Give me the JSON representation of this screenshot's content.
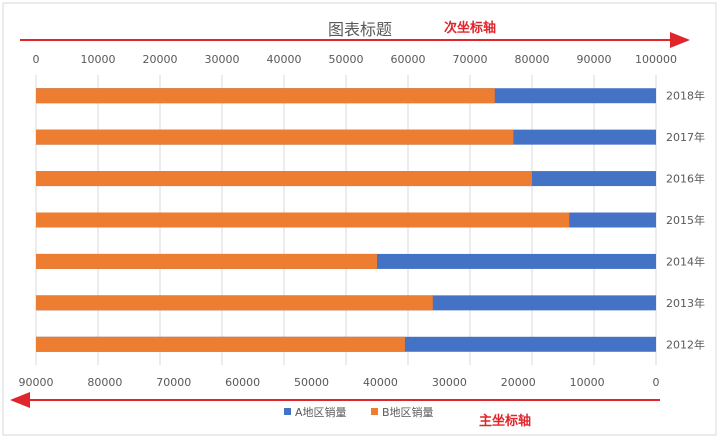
{
  "chart_data": {
    "type": "bar",
    "orientation": "horizontal",
    "title": "图表标题",
    "categories": [
      "2018年",
      "2017年",
      "2016年",
      "2015年",
      "2014年",
      "2013年",
      "2012年"
    ],
    "series": [
      {
        "name": "A地区销量",
        "axis": "primary",
        "color": "#4472c4",
        "axis_direction": "reversed",
        "xlim": [
          0,
          90000
        ],
        "values": [
          90000,
          90000,
          90000,
          90000,
          90000,
          90000,
          90000
        ]
      },
      {
        "name": "B地区销量",
        "axis": "secondary",
        "color": "#ed7d31",
        "axis_direction": "normal",
        "xlim": [
          0,
          100000
        ],
        "values": [
          74000,
          77000,
          80000,
          86000,
          55000,
          64000,
          59500
        ]
      }
    ],
    "primary_axis": {
      "label": "主坐标轴",
      "ticks": [
        "90000",
        "80000",
        "70000",
        "60000",
        "50000",
        "40000",
        "30000",
        "20000",
        "10000",
        "0"
      ]
    },
    "secondary_axis": {
      "label": "次坐标轴",
      "ticks": [
        "0",
        "10000",
        "20000",
        "30000",
        "40000",
        "50000",
        "60000",
        "70000",
        "80000",
        "90000",
        "100000"
      ]
    },
    "legend_position": "bottom",
    "grid": true,
    "annotation_color": "#e0262b"
  }
}
